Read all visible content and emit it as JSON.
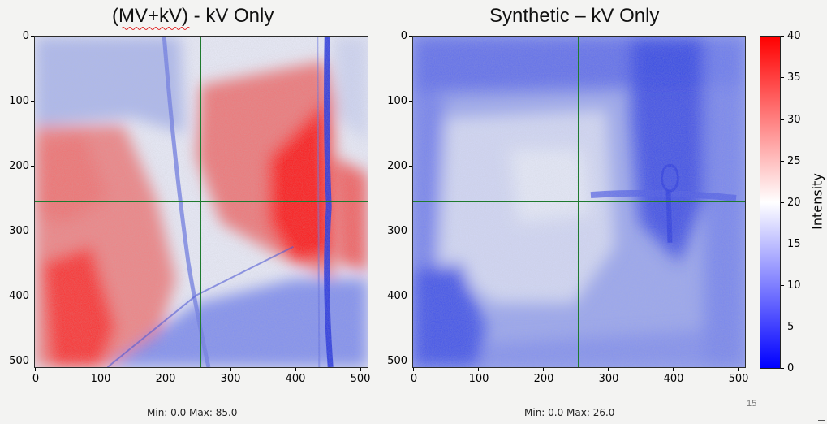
{
  "panels": [
    {
      "title": "(MV+kV) - kV Only",
      "stats": "Min: 0.0  Max: 85.0",
      "y_ticks": [
        "0",
        "100",
        "200",
        "300",
        "400",
        "500"
      ],
      "x_ticks": [
        "0",
        "100",
        "200",
        "300",
        "400",
        "500"
      ],
      "crosshair_color": "#1e7a2e"
    },
    {
      "title": "Synthetic – kV Only",
      "stats": "Min: 0.0  Max: 26.0",
      "y_ticks": [
        "0",
        "100",
        "200",
        "300",
        "400",
        "500"
      ],
      "x_ticks": [
        "0",
        "100",
        "200",
        "300",
        "400",
        "500"
      ],
      "crosshair_color": "#1e7a2e"
    }
  ],
  "colorbar": {
    "label": "Intensity",
    "ticks": [
      "40",
      "35",
      "30",
      "25",
      "20",
      "15",
      "10",
      "5",
      "0"
    ],
    "colormap": "bwr",
    "color_low": "#0000ff",
    "color_mid": "#ffffff",
    "color_high": "#ff0000"
  },
  "slide_number": "15"
}
